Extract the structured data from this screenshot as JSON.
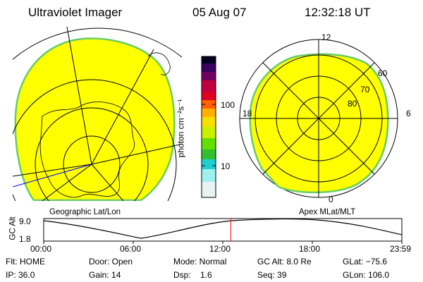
{
  "header": {
    "instrument": "Ultraviolet Imager",
    "date": "05 Aug 07",
    "time": "12:32:18 UT"
  },
  "colorbar": {
    "unit_label": "photon cm⁻²s⁻¹",
    "ticks": [
      {
        "value": 100,
        "label": "100"
      },
      {
        "value": 10,
        "label": "10"
      }
    ],
    "scale": "log",
    "colors": [
      "#000020",
      "#3a0060",
      "#b00050",
      "#e00020",
      "#ff6000",
      "#ffb000",
      "#f5e000",
      "#c8f000",
      "#60e000",
      "#30c030",
      "#20d0d0",
      "#a0f0f0",
      "#ffffff"
    ]
  },
  "left_map": {
    "label": "Geographic Lat/Lon",
    "fill_color": "#ffff00",
    "edge_color": "#66cc66"
  },
  "right_map": {
    "label": "Apex MLat/MLT",
    "mlt_labels": {
      "top": "12",
      "bottom": "0",
      "left": "18",
      "right": "6"
    },
    "lat_labels": [
      "60",
      "70",
      "80"
    ],
    "fill_color": "#ffff00",
    "edge_color": "#66cc66"
  },
  "altitude_plot": {
    "ylabel": "GC Alt",
    "yticks": [
      "9.0",
      "1.8"
    ],
    "xticks": [
      "00:00",
      "06:00",
      "12:00",
      "18:00",
      "23:59"
    ],
    "current_time_hours": 12.54,
    "marker_color": "#ff0000"
  },
  "status": {
    "flt": "Flt: HOME",
    "ip": "IP: 36.0",
    "door": "Door: Open",
    "gain": "Gain: 14",
    "mode": "Mode: Normal",
    "dsp": "Dsp:    1.6",
    "gcalt": "GC Alt: 8.0 Re",
    "seq": "Seq: 39",
    "glat": "GLat: −75.6",
    "glon": "GLon: 106.0"
  }
}
